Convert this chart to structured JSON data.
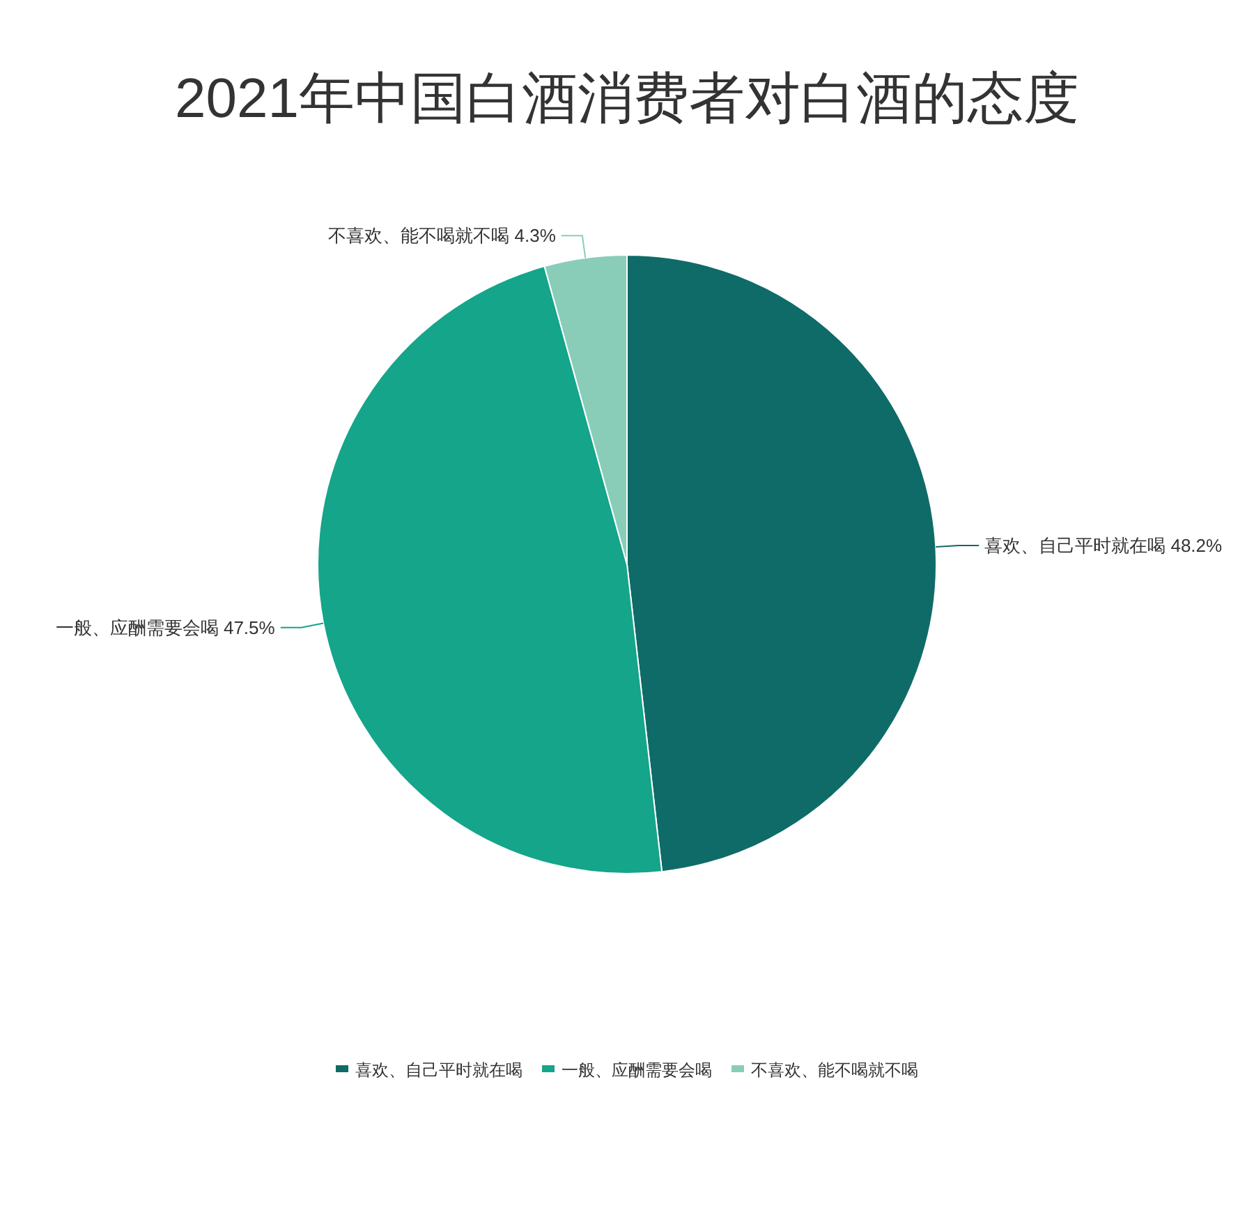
{
  "chart_data": {
    "type": "pie",
    "title": "2021年中国白酒消费者对白酒的态度",
    "categories": [
      "喜欢、自己平时就在喝",
      "一般、应酬需要会喝",
      "不喜欢、能不喝就不喝"
    ],
    "values": [
      48.2,
      47.5,
      4.3
    ],
    "colors": [
      "#0f6b67",
      "#14a58a",
      "#89cdb9"
    ],
    "value_labels": [
      "48.2%",
      "47.5%",
      "4.3%"
    ],
    "legend": "bottom"
  }
}
